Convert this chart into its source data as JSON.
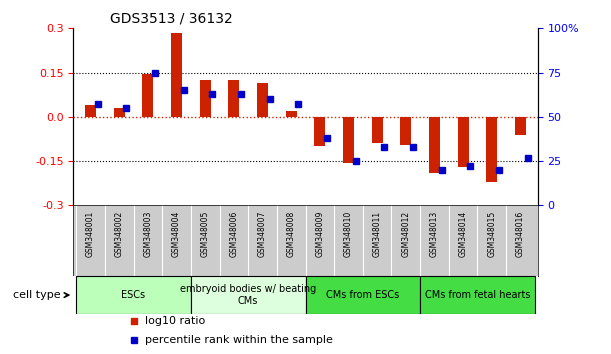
{
  "title": "GDS3513 / 36132",
  "samples": [
    "GSM348001",
    "GSM348002",
    "GSM348003",
    "GSM348004",
    "GSM348005",
    "GSM348006",
    "GSM348007",
    "GSM348008",
    "GSM348009",
    "GSM348010",
    "GSM348011",
    "GSM348012",
    "GSM348013",
    "GSM348014",
    "GSM348015",
    "GSM348016"
  ],
  "log10_ratio": [
    0.04,
    0.03,
    0.145,
    0.285,
    0.125,
    0.125,
    0.115,
    0.02,
    -0.1,
    -0.155,
    -0.09,
    -0.095,
    -0.19,
    -0.17,
    -0.22,
    -0.06
  ],
  "percentile_rank": [
    57,
    55,
    75,
    65,
    63,
    63,
    60,
    57,
    38,
    25,
    33,
    33,
    20,
    22,
    20,
    27
  ],
  "ylim_left": [
    -0.3,
    0.3
  ],
  "ylim_right": [
    0,
    100
  ],
  "yticks_left": [
    -0.3,
    -0.15,
    0.0,
    0.15,
    0.3
  ],
  "yticks_right": [
    0,
    25,
    50,
    75,
    100
  ],
  "bar_color": "#cc2200",
  "dot_color": "#0000cc",
  "cell_type_groups": [
    {
      "label": "ESCs",
      "start": 0,
      "end": 3,
      "color": "#bbffbb"
    },
    {
      "label": "embryoid bodies w/ beating\nCMs",
      "start": 4,
      "end": 7,
      "color": "#ddffdd"
    },
    {
      "label": "CMs from ESCs",
      "start": 8,
      "end": 11,
      "color": "#44dd44"
    },
    {
      "label": "CMs from fetal hearts",
      "start": 12,
      "end": 15,
      "color": "#44dd44"
    }
  ],
  "legend_items": [
    {
      "label": "log10 ratio",
      "color": "#cc2200"
    },
    {
      "label": "percentile rank within the sample",
      "color": "#0000cc"
    }
  ],
  "cell_type_label": "cell type",
  "background_color": "#ffffff",
  "label_bg": "#cccccc"
}
